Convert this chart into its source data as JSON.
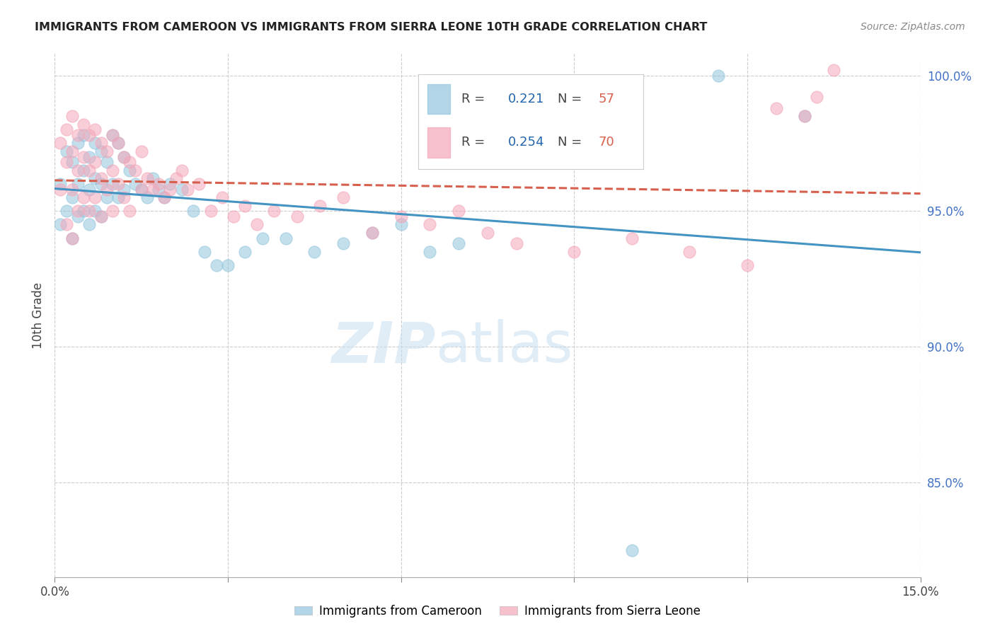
{
  "title": "IMMIGRANTS FROM CAMEROON VS IMMIGRANTS FROM SIERRA LEONE 10TH GRADE CORRELATION CHART",
  "source": "Source: ZipAtlas.com",
  "ylabel": "10th Grade",
  "xmin": 0.0,
  "xmax": 0.15,
  "ymin": 0.815,
  "ymax": 1.008,
  "yticks": [
    0.85,
    0.9,
    0.95,
    1.0
  ],
  "ytick_labels": [
    "85.0%",
    "90.0%",
    "95.0%",
    "100.0%"
  ],
  "legend_blue_R": "0.221",
  "legend_blue_N": "57",
  "legend_pink_R": "0.254",
  "legend_pink_N": "70",
  "blue_color": "#92c5de",
  "pink_color": "#f4a6b8",
  "blue_line_color": "#4393c3",
  "pink_line_color": "#d6604d",
  "blue_scatter_x": [
    0.001,
    0.001,
    0.002,
    0.002,
    0.003,
    0.003,
    0.003,
    0.004,
    0.004,
    0.004,
    0.005,
    0.005,
    0.005,
    0.006,
    0.006,
    0.006,
    0.007,
    0.007,
    0.007,
    0.008,
    0.008,
    0.008,
    0.009,
    0.009,
    0.01,
    0.01,
    0.011,
    0.011,
    0.012,
    0.012,
    0.013,
    0.014,
    0.015,
    0.016,
    0.017,
    0.018,
    0.019,
    0.02,
    0.022,
    0.024,
    0.026,
    0.028,
    0.03,
    0.033,
    0.036,
    0.04,
    0.045,
    0.05,
    0.055,
    0.06,
    0.065,
    0.07,
    0.08,
    0.09,
    0.1,
    0.115,
    0.13
  ],
  "blue_scatter_y": [
    0.96,
    0.945,
    0.972,
    0.95,
    0.968,
    0.955,
    0.94,
    0.975,
    0.96,
    0.948,
    0.978,
    0.965,
    0.95,
    0.97,
    0.958,
    0.945,
    0.975,
    0.962,
    0.95,
    0.972,
    0.96,
    0.948,
    0.968,
    0.955,
    0.978,
    0.96,
    0.975,
    0.955,
    0.97,
    0.958,
    0.965,
    0.96,
    0.958,
    0.955,
    0.962,
    0.958,
    0.955,
    0.96,
    0.958,
    0.95,
    0.935,
    0.93,
    0.93,
    0.935,
    0.94,
    0.94,
    0.935,
    0.938,
    0.942,
    0.945,
    0.935,
    0.938,
    0.968,
    0.972,
    0.825,
    1.0,
    0.985
  ],
  "pink_scatter_x": [
    0.001,
    0.001,
    0.002,
    0.002,
    0.002,
    0.003,
    0.003,
    0.003,
    0.003,
    0.004,
    0.004,
    0.004,
    0.005,
    0.005,
    0.005,
    0.006,
    0.006,
    0.006,
    0.007,
    0.007,
    0.007,
    0.008,
    0.008,
    0.008,
    0.009,
    0.009,
    0.01,
    0.01,
    0.01,
    0.011,
    0.011,
    0.012,
    0.012,
    0.013,
    0.013,
    0.014,
    0.015,
    0.015,
    0.016,
    0.017,
    0.018,
    0.019,
    0.02,
    0.021,
    0.022,
    0.023,
    0.025,
    0.027,
    0.029,
    0.031,
    0.033,
    0.035,
    0.038,
    0.042,
    0.046,
    0.05,
    0.055,
    0.06,
    0.065,
    0.07,
    0.075,
    0.08,
    0.09,
    0.1,
    0.11,
    0.12,
    0.125,
    0.13,
    0.132,
    0.135
  ],
  "pink_scatter_y": [
    0.975,
    0.958,
    0.98,
    0.968,
    0.945,
    0.985,
    0.972,
    0.958,
    0.94,
    0.978,
    0.965,
    0.95,
    0.982,
    0.97,
    0.955,
    0.978,
    0.965,
    0.95,
    0.98,
    0.968,
    0.955,
    0.975,
    0.962,
    0.948,
    0.972,
    0.958,
    0.978,
    0.965,
    0.95,
    0.975,
    0.96,
    0.97,
    0.955,
    0.968,
    0.95,
    0.965,
    0.972,
    0.958,
    0.962,
    0.958,
    0.96,
    0.955,
    0.958,
    0.962,
    0.965,
    0.958,
    0.96,
    0.95,
    0.955,
    0.948,
    0.952,
    0.945,
    0.95,
    0.948,
    0.952,
    0.955,
    0.942,
    0.948,
    0.945,
    0.95,
    0.942,
    0.938,
    0.935,
    0.94,
    0.935,
    0.93,
    0.988,
    0.985,
    0.992,
    1.002
  ]
}
